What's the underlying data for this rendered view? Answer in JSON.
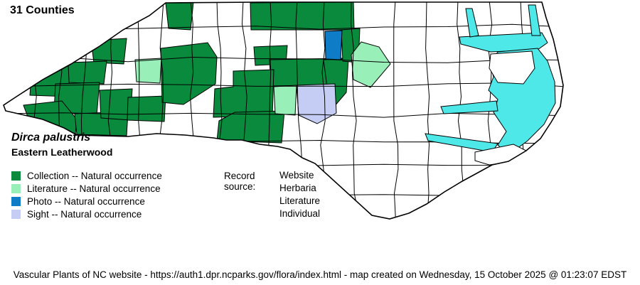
{
  "header": {
    "count_label": "31 Counties"
  },
  "species": {
    "scientific": "Dirca palustris",
    "common": "Eastern Leatherwood"
  },
  "legend": {
    "items": [
      {
        "key": "collection",
        "label": "Collection -- Natural occurrence",
        "color": "#0a8a3c"
      },
      {
        "key": "literature",
        "label": "Literature -- Natural occurrence",
        "color": "#99efb8"
      },
      {
        "key": "photo",
        "label": "Photo -- Natural occurrence",
        "color": "#0e7cc6"
      },
      {
        "key": "sight",
        "label": "Sight -- Natural occurrence",
        "color": "#c6cdf4"
      }
    ]
  },
  "record_source": {
    "label": "Record source:",
    "values": [
      "Website",
      "Herbaria",
      "Literature",
      "Individual"
    ]
  },
  "map": {
    "land_color": "#ffffff",
    "border_color": "#000000",
    "water_color": "#4fe8e8"
  },
  "footer": {
    "text": "Vascular Plants of NC website - https://auth1.dpr.ncparks.gov/flora/index.html - map created on Wednesday, 15 October 2025 @ 01:23:07 EDST"
  }
}
